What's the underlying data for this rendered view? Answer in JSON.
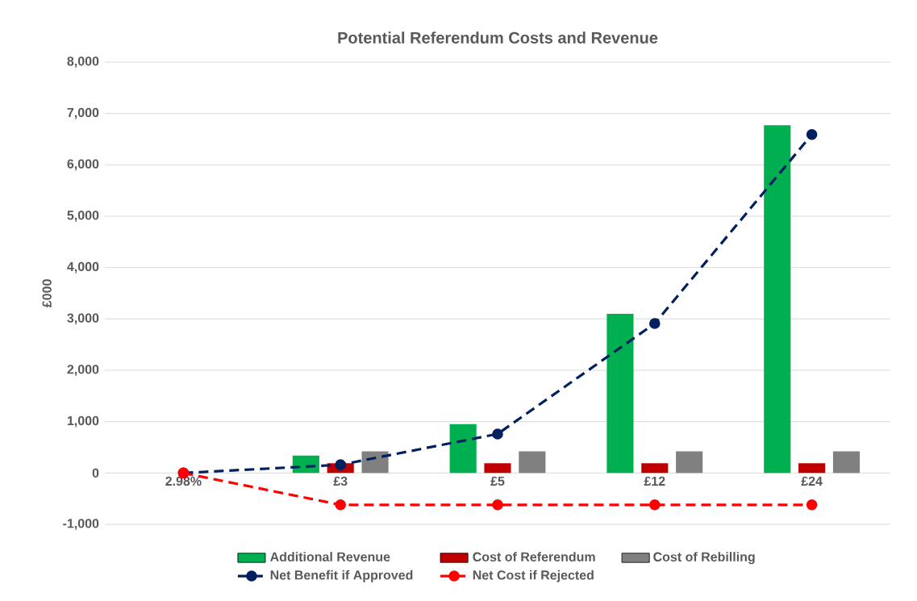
{
  "chart_data": {
    "type": "bar",
    "title": "Potential Referendum Costs and Revenue",
    "ylabel": "£000",
    "categories": [
      "2.98%",
      "£3",
      "£5",
      "£12",
      "£24"
    ],
    "ylim": [
      -1000,
      8000
    ],
    "yticks": [
      {
        "value": -1000,
        "label": "-1,000"
      },
      0,
      {
        "value": 1000,
        "label": "1,000"
      },
      {
        "value": 2000,
        "label": "2,000"
      },
      {
        "value": 3000,
        "label": "3,000"
      },
      {
        "value": 4000,
        "label": "4,000"
      },
      {
        "value": 5000,
        "label": "5,000"
      },
      {
        "value": 6000,
        "label": "6,000"
      },
      {
        "value": 7000,
        "label": "7,000"
      },
      {
        "value": 8000,
        "label": "8,000"
      }
    ],
    "grid": "y",
    "legend": "bottom",
    "marker": "circle",
    "line_style": "dashed",
    "series": [
      {
        "name": "Additional Revenue",
        "color": "#00b050",
        "values": [
          null,
          340,
          950,
          3100,
          6770
        ]
      },
      {
        "name": "Cost of Referendum",
        "color": "#c00000",
        "values": [
          null,
          190,
          190,
          190,
          190
        ]
      },
      {
        "name": "Cost of Rebilling",
        "color": "#808080",
        "values": [
          null,
          420,
          420,
          420,
          420
        ]
      },
      {
        "name": "Net Benefit if Approved",
        "type": "line",
        "color": "#002060",
        "values": [
          0,
          160,
          760,
          2910,
          6590
        ]
      },
      {
        "name": "Net Cost if Rejected",
        "type": "line",
        "color": "#ff0000",
        "values": [
          0,
          -620,
          -620,
          -620,
          -620
        ]
      }
    ]
  }
}
